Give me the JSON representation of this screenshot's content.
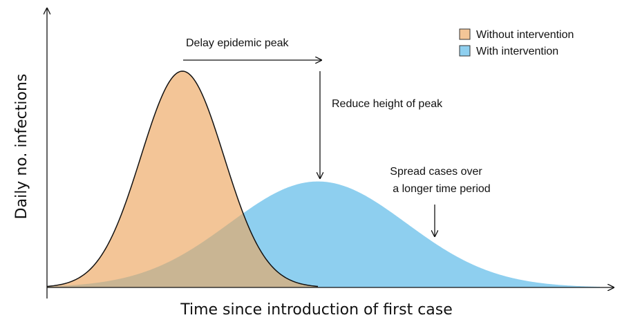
{
  "chart_data": {
    "type": "area",
    "xlabel": "Time since introduction of first case",
    "ylabel": "Daily no. infections",
    "xlim": [
      0,
      100
    ],
    "ylim": [
      0,
      100
    ],
    "grid": false,
    "legend_position": "top-right",
    "series": [
      {
        "name": "Without intervention",
        "color": "#f3c597",
        "stroke": "#111111",
        "peak_x": 24.5,
        "peak_y": 100,
        "spread": 7.5,
        "end_x": 49
      },
      {
        "name": "With intervention",
        "color": "#8ecfef",
        "peak_x": 49,
        "peak_y": 49,
        "spread": 16
      }
    ],
    "overlap_color": "#c9b593",
    "annotations": {
      "delay": "Delay epidemic peak",
      "reduce": "Reduce height of peak",
      "spread_line1": "Spread cases over",
      "spread_line2": "a longer time period"
    }
  }
}
